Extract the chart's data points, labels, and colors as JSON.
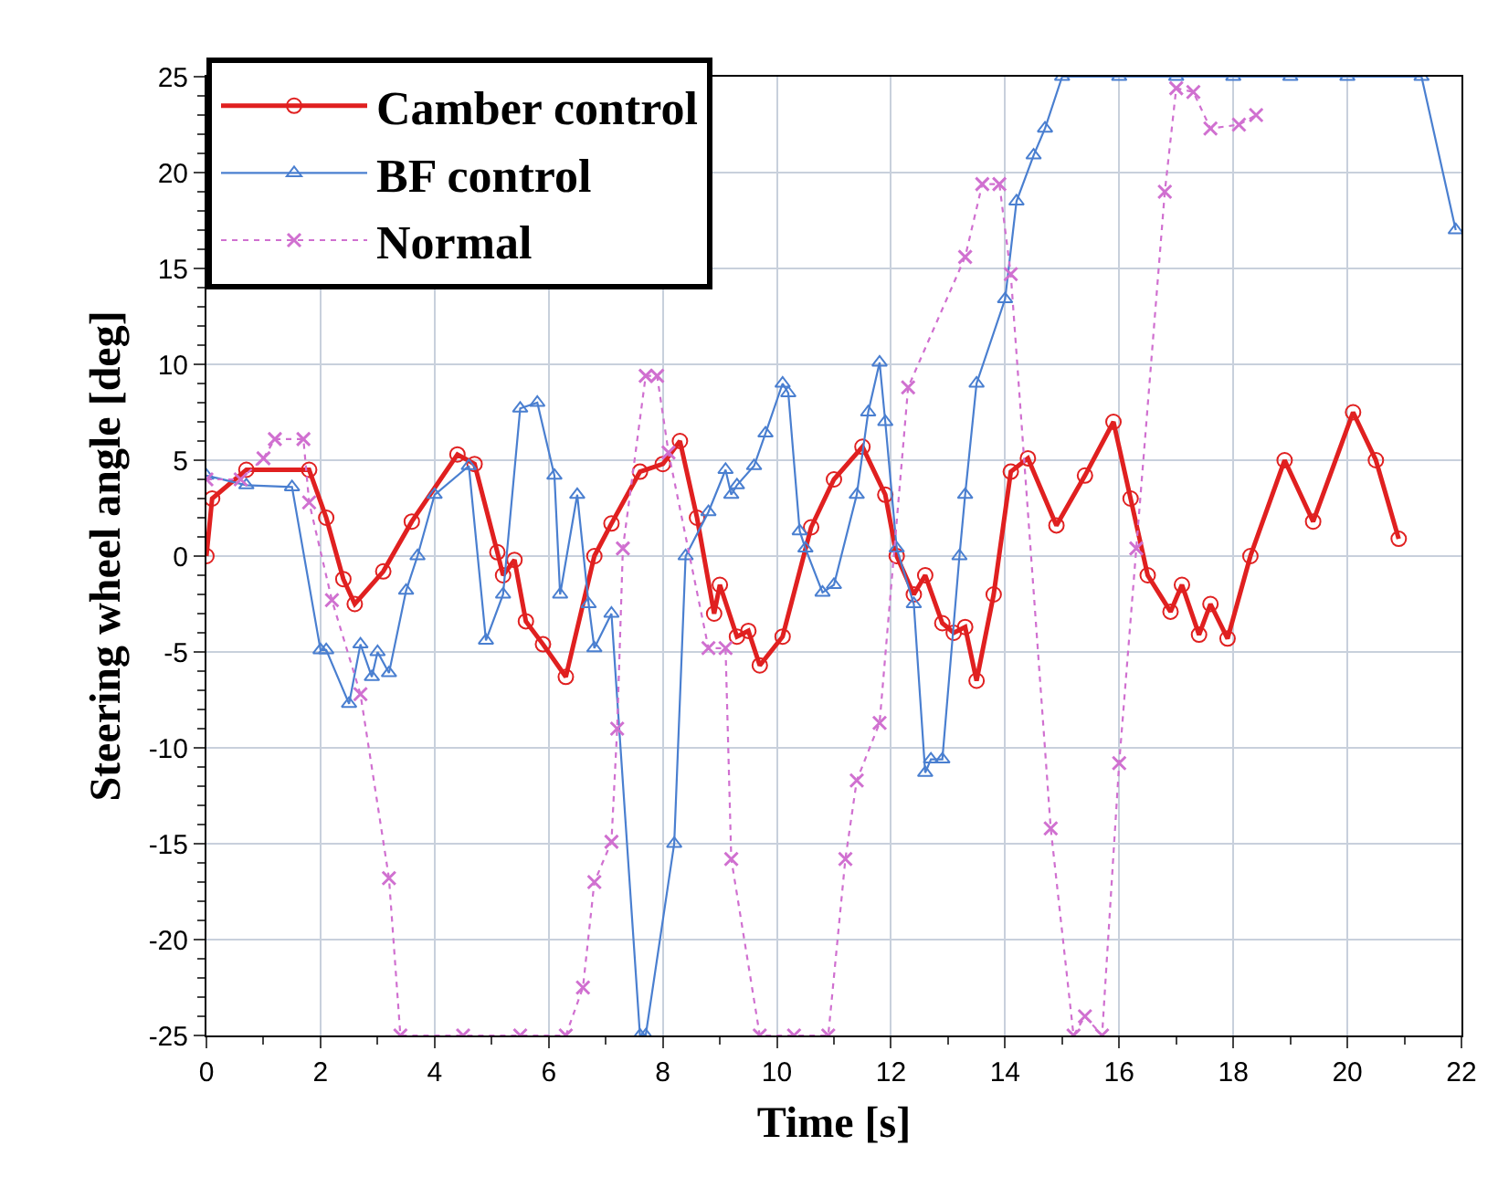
{
  "chart_data": {
    "type": "line",
    "xlabel": "Time [s]",
    "ylabel": "Steering wheel angle [deg]",
    "xlim": [
      0,
      22
    ],
    "xticks": [
      0,
      2,
      4,
      6,
      8,
      10,
      12,
      14,
      16,
      18,
      20,
      22
    ],
    "ylim": [
      -25,
      25
    ],
    "yticks": [
      -25,
      -20,
      -15,
      -10,
      -5,
      0,
      5,
      10,
      15,
      20,
      25
    ],
    "grid": true,
    "legend": "top left",
    "series": [
      {
        "name": "Camber control",
        "color": "#e02020",
        "marker": "circle",
        "line_style": "solid",
        "x": [
          0,
          0.1,
          0.7,
          1.8,
          2.1,
          2.4,
          2.6,
          3.1,
          3.6,
          4.4,
          4.7,
          5.1,
          5.2,
          5.4,
          5.6,
          5.9,
          6.3,
          6.8,
          7.1,
          7.6,
          8.0,
          8.3,
          8.6,
          8.9,
          9.0,
          9.3,
          9.5,
          9.7,
          10.1,
          10.6,
          11.0,
          11.5,
          11.9,
          12.1,
          12.4,
          12.6,
          12.9,
          13.1,
          13.3,
          13.5,
          13.8,
          14.1,
          14.4,
          14.9,
          15.4,
          15.9,
          16.2,
          16.5,
          16.9,
          17.1,
          17.4,
          17.6,
          17.9,
          18.3,
          18.9,
          19.4,
          20.1,
          20.5,
          20.9
        ],
        "values": [
          0,
          3,
          4.5,
          4.5,
          2,
          -1.2,
          -2.5,
          -0.8,
          1.8,
          5.3,
          4.8,
          0.2,
          -1,
          -0.2,
          -3.4,
          -4.6,
          -6.3,
          0,
          1.7,
          4.4,
          4.8,
          6,
          2,
          -3,
          -1.5,
          -4.2,
          -3.9,
          -5.7,
          -4.2,
          1.5,
          4,
          5.7,
          3.2,
          0,
          -2,
          -1,
          -3.5,
          -4,
          -3.7,
          -6.5,
          -2,
          4.4,
          5.1,
          1.6,
          4.2,
          7.0,
          3,
          -1,
          -2.9,
          -1.5,
          -4.1,
          -2.5,
          -4.3,
          0,
          5,
          1.8,
          7.5,
          5,
          0.9
        ]
      },
      {
        "name": "BF control",
        "color": "#4a7fd0",
        "marker": "triangle",
        "line_style": "solid",
        "x": [
          0,
          0.7,
          1.5,
          2.0,
          2.1,
          2.5,
          2.7,
          2.9,
          3.0,
          3.2,
          3.5,
          3.7,
          4.0,
          4.6,
          4.9,
          5.2,
          5.5,
          5.8,
          6.1,
          6.2,
          6.5,
          6.7,
          6.8,
          7.1,
          7.6,
          7.7,
          8.2,
          8.4,
          8.8,
          9.1,
          9.2,
          9.3,
          9.6,
          9.8,
          10.1,
          10.2,
          10.4,
          10.5,
          10.8,
          11.0,
          11.4,
          11.6,
          11.8,
          11.9,
          12.1,
          12.4,
          12.6,
          12.7,
          12.9,
          13.2,
          13.3,
          13.5,
          14.0,
          14.2,
          14.5,
          14.7,
          15.0,
          16.0,
          17.0,
          18.0,
          19.0,
          20.0,
          21.3,
          21.9
        ],
        "values": [
          4.2,
          3.7,
          3.6,
          -4.9,
          -4.9,
          -7.7,
          -4.6,
          -6.3,
          -5,
          -6.1,
          -1.8,
          0,
          3.2,
          4.7,
          -4.4,
          -2,
          7.7,
          8,
          4.2,
          -2,
          3.2,
          -2.5,
          -4.8,
          -3,
          -25,
          -25,
          -15,
          0,
          2.3,
          4.5,
          3.2,
          3.7,
          4.7,
          6.4,
          9,
          8.5,
          1.3,
          0.4,
          -1.9,
          -1.5,
          3.2,
          7.5,
          10.1,
          7,
          0.4,
          -2.5,
          -11.3,
          -10.6,
          -10.6,
          0,
          3.2,
          9,
          13.4,
          18.5,
          20.9,
          22.3,
          25,
          25,
          25,
          25,
          25,
          25,
          25,
          17
        ]
      },
      {
        "name": "Normal",
        "color": "#d070d0",
        "marker": "cross",
        "line_style": "dotted",
        "x": [
          0,
          0.6,
          1.0,
          1.2,
          1.7,
          1.8,
          2.2,
          2.7,
          3.2,
          3.4,
          4.5,
          5.5,
          6.3,
          6.6,
          6.8,
          7.1,
          7.2,
          7.3,
          7.7,
          7.9,
          8.1,
          8.8,
          9.1,
          9.2,
          9.7,
          10.3,
          10.9,
          11.2,
          11.4,
          11.8,
          12.3,
          13.3,
          13.6,
          13.9,
          14.1,
          14.8,
          15.2,
          15.4,
          15.7,
          16.0,
          16.3,
          16.8,
          17.0,
          17.3,
          17.6,
          18.1,
          18.4
        ],
        "values": [
          4,
          4,
          5.1,
          6.1,
          6.1,
          2.8,
          -2.3,
          -7.2,
          -16.8,
          -25,
          -25,
          -25,
          -25,
          -22.5,
          -17,
          -14.9,
          -9,
          0.4,
          9.4,
          9.4,
          5.4,
          -4.8,
          -4.8,
          -15.8,
          -25,
          -25,
          -25,
          -15.8,
          -11.7,
          -8.7,
          8.8,
          15.6,
          19.4,
          19.4,
          14.7,
          -14.2,
          -25,
          -24,
          -25,
          -10.8,
          0.4,
          19,
          24.4,
          24.2,
          22.3,
          22.5,
          23
        ]
      }
    ]
  }
}
